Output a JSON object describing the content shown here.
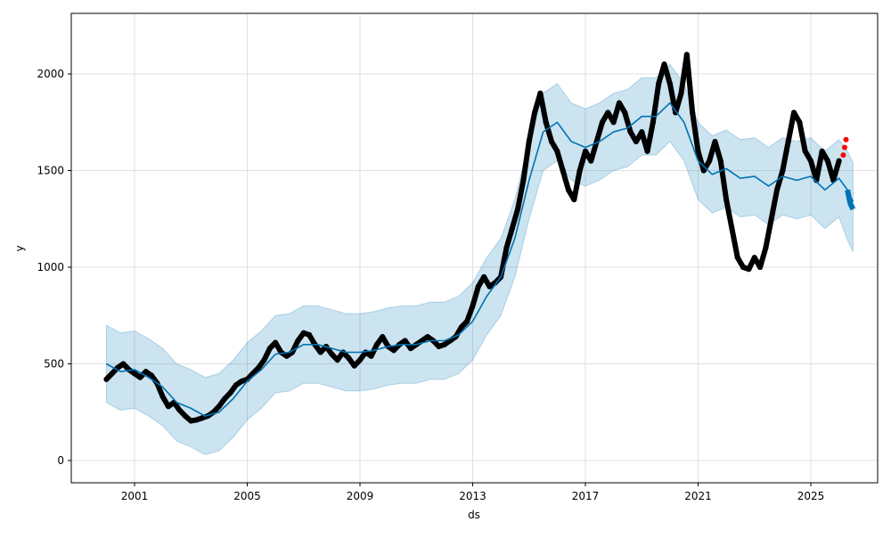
{
  "chart_data": {
    "type": "line",
    "title": "",
    "xlabel": "ds",
    "ylabel": "y",
    "xlim": [
      1999.9,
      2027.2
    ],
    "ylim": [
      -110,
      2310
    ],
    "grid": true,
    "x_ticks": [
      {
        "value": 2001,
        "label": "2001"
      },
      {
        "value": 2005,
        "label": "2005"
      },
      {
        "value": 2009,
        "label": "2009"
      },
      {
        "value": 2013,
        "label": "2013"
      },
      {
        "value": 2017,
        "label": "2017"
      },
      {
        "value": 2021,
        "label": "2021"
      },
      {
        "value": 2025,
        "label": "2025"
      }
    ],
    "y_ticks": [
      {
        "value": 0,
        "label": "0"
      },
      {
        "value": 500,
        "label": "500"
      },
      {
        "value": 1000,
        "label": "1000"
      },
      {
        "value": 1500,
        "label": "1500"
      },
      {
        "value": 2000,
        "label": "2000"
      }
    ],
    "colors": {
      "observed": "#000000",
      "recent": "#ff0000",
      "forecast": "#0072B2",
      "interval": "#0072B2"
    },
    "uncertainty": 200,
    "forecast": [
      [
        2000.0,
        500
      ],
      [
        2000.5,
        460
      ],
      [
        2001.0,
        470
      ],
      [
        2001.5,
        430
      ],
      [
        2002.0,
        380
      ],
      [
        2002.5,
        300
      ],
      [
        2003.0,
        270
      ],
      [
        2003.5,
        230
      ],
      [
        2004.0,
        250
      ],
      [
        2004.5,
        320
      ],
      [
        2005.0,
        410
      ],
      [
        2005.5,
        470
      ],
      [
        2006.0,
        550
      ],
      [
        2006.5,
        560
      ],
      [
        2007.0,
        600
      ],
      [
        2007.5,
        600
      ],
      [
        2008.0,
        580
      ],
      [
        2008.5,
        560
      ],
      [
        2009.0,
        560
      ],
      [
        2009.5,
        570
      ],
      [
        2010.0,
        590
      ],
      [
        2010.5,
        600
      ],
      [
        2011.0,
        600
      ],
      [
        2011.5,
        620
      ],
      [
        2012.0,
        620
      ],
      [
        2012.5,
        650
      ],
      [
        2013.0,
        720
      ],
      [
        2013.5,
        850
      ],
      [
        2014.0,
        950
      ],
      [
        2014.5,
        1150
      ],
      [
        2015.0,
        1450
      ],
      [
        2015.5,
        1700
      ],
      [
        2016.0,
        1750
      ],
      [
        2016.5,
        1650
      ],
      [
        2017.0,
        1620
      ],
      [
        2017.5,
        1650
      ],
      [
        2018.0,
        1700
      ],
      [
        2018.5,
        1720
      ],
      [
        2019.0,
        1780
      ],
      [
        2019.5,
        1780
      ],
      [
        2020.0,
        1850
      ],
      [
        2020.5,
        1750
      ],
      [
        2021.0,
        1550
      ],
      [
        2021.5,
        1480
      ],
      [
        2022.0,
        1510
      ],
      [
        2022.5,
        1460
      ],
      [
        2023.0,
        1470
      ],
      [
        2023.5,
        1420
      ],
      [
        2024.0,
        1470
      ],
      [
        2024.5,
        1450
      ],
      [
        2025.0,
        1470
      ],
      [
        2025.5,
        1400
      ],
      [
        2026.0,
        1460
      ],
      [
        2026.3,
        1400
      ],
      [
        2026.5,
        1340
      ]
    ],
    "future_forecast": [
      [
        2026.3,
        1400
      ],
      [
        2026.4,
        1330
      ],
      [
        2026.5,
        1300
      ]
    ],
    "observed": [
      [
        2000.0,
        420
      ],
      [
        2000.2,
        450
      ],
      [
        2000.4,
        480
      ],
      [
        2000.6,
        500
      ],
      [
        2000.8,
        470
      ],
      [
        2001.0,
        450
      ],
      [
        2001.2,
        430
      ],
      [
        2001.4,
        460
      ],
      [
        2001.6,
        440
      ],
      [
        2001.8,
        400
      ],
      [
        2002.0,
        330
      ],
      [
        2002.2,
        280
      ],
      [
        2002.4,
        300
      ],
      [
        2002.6,
        260
      ],
      [
        2002.8,
        230
      ],
      [
        2003.0,
        205
      ],
      [
        2003.2,
        210
      ],
      [
        2003.4,
        220
      ],
      [
        2003.6,
        230
      ],
      [
        2003.8,
        250
      ],
      [
        2004.0,
        280
      ],
      [
        2004.2,
        320
      ],
      [
        2004.4,
        350
      ],
      [
        2004.6,
        390
      ],
      [
        2004.8,
        410
      ],
      [
        2005.0,
        420
      ],
      [
        2005.2,
        450
      ],
      [
        2005.4,
        480
      ],
      [
        2005.6,
        520
      ],
      [
        2005.8,
        580
      ],
      [
        2006.0,
        610
      ],
      [
        2006.2,
        560
      ],
      [
        2006.4,
        540
      ],
      [
        2006.6,
        560
      ],
      [
        2006.8,
        620
      ],
      [
        2007.0,
        660
      ],
      [
        2007.2,
        650
      ],
      [
        2007.4,
        600
      ],
      [
        2007.6,
        560
      ],
      [
        2007.8,
        590
      ],
      [
        2008.0,
        550
      ],
      [
        2008.2,
        520
      ],
      [
        2008.4,
        560
      ],
      [
        2008.6,
        530
      ],
      [
        2008.8,
        490
      ],
      [
        2009.0,
        520
      ],
      [
        2009.2,
        560
      ],
      [
        2009.4,
        540
      ],
      [
        2009.6,
        600
      ],
      [
        2009.8,
        640
      ],
      [
        2010.0,
        590
      ],
      [
        2010.2,
        570
      ],
      [
        2010.4,
        600
      ],
      [
        2010.6,
        620
      ],
      [
        2010.8,
        580
      ],
      [
        2011.0,
        600
      ],
      [
        2011.2,
        620
      ],
      [
        2011.4,
        640
      ],
      [
        2011.6,
        620
      ],
      [
        2011.8,
        590
      ],
      [
        2012.0,
        600
      ],
      [
        2012.2,
        620
      ],
      [
        2012.4,
        640
      ],
      [
        2012.6,
        690
      ],
      [
        2012.8,
        720
      ],
      [
        2013.0,
        800
      ],
      [
        2013.2,
        900
      ],
      [
        2013.4,
        950
      ],
      [
        2013.6,
        900
      ],
      [
        2013.8,
        920
      ],
      [
        2014.0,
        950
      ],
      [
        2014.2,
        1100
      ],
      [
        2014.4,
        1200
      ],
      [
        2014.6,
        1300
      ],
      [
        2014.8,
        1450
      ],
      [
        2015.0,
        1650
      ],
      [
        2015.2,
        1800
      ],
      [
        2015.4,
        1900
      ],
      [
        2015.6,
        1750
      ],
      [
        2015.8,
        1650
      ],
      [
        2016.0,
        1600
      ],
      [
        2016.2,
        1500
      ],
      [
        2016.4,
        1400
      ],
      [
        2016.6,
        1350
      ],
      [
        2016.8,
        1500
      ],
      [
        2017.0,
        1600
      ],
      [
        2017.2,
        1550
      ],
      [
        2017.4,
        1650
      ],
      [
        2017.6,
        1750
      ],
      [
        2017.8,
        1800
      ],
      [
        2018.0,
        1750
      ],
      [
        2018.2,
        1850
      ],
      [
        2018.4,
        1800
      ],
      [
        2018.6,
        1700
      ],
      [
        2018.8,
        1650
      ],
      [
        2019.0,
        1700
      ],
      [
        2019.2,
        1600
      ],
      [
        2019.4,
        1750
      ],
      [
        2019.6,
        1950
      ],
      [
        2019.8,
        2050
      ],
      [
        2020.0,
        1950
      ],
      [
        2020.2,
        1800
      ],
      [
        2020.4,
        1900
      ],
      [
        2020.6,
        2100
      ],
      [
        2020.8,
        1800
      ],
      [
        2021.0,
        1600
      ],
      [
        2021.2,
        1500
      ],
      [
        2021.4,
        1550
      ],
      [
        2021.6,
        1650
      ],
      [
        2021.8,
        1550
      ],
      [
        2022.0,
        1350
      ],
      [
        2022.2,
        1200
      ],
      [
        2022.4,
        1050
      ],
      [
        2022.6,
        1000
      ],
      [
        2022.8,
        990
      ],
      [
        2023.0,
        1050
      ],
      [
        2023.2,
        1000
      ],
      [
        2023.4,
        1100
      ],
      [
        2023.6,
        1250
      ],
      [
        2023.8,
        1400
      ],
      [
        2024.0,
        1500
      ],
      [
        2024.2,
        1650
      ],
      [
        2024.4,
        1800
      ],
      [
        2024.6,
        1750
      ],
      [
        2024.8,
        1600
      ],
      [
        2025.0,
        1550
      ],
      [
        2025.2,
        1450
      ],
      [
        2025.4,
        1600
      ],
      [
        2025.6,
        1550
      ],
      [
        2025.8,
        1450
      ],
      [
        2026.0,
        1550
      ]
    ],
    "recent_observed": [
      [
        2026.15,
        1580
      ],
      [
        2026.2,
        1620
      ],
      [
        2026.25,
        1660
      ]
    ]
  }
}
